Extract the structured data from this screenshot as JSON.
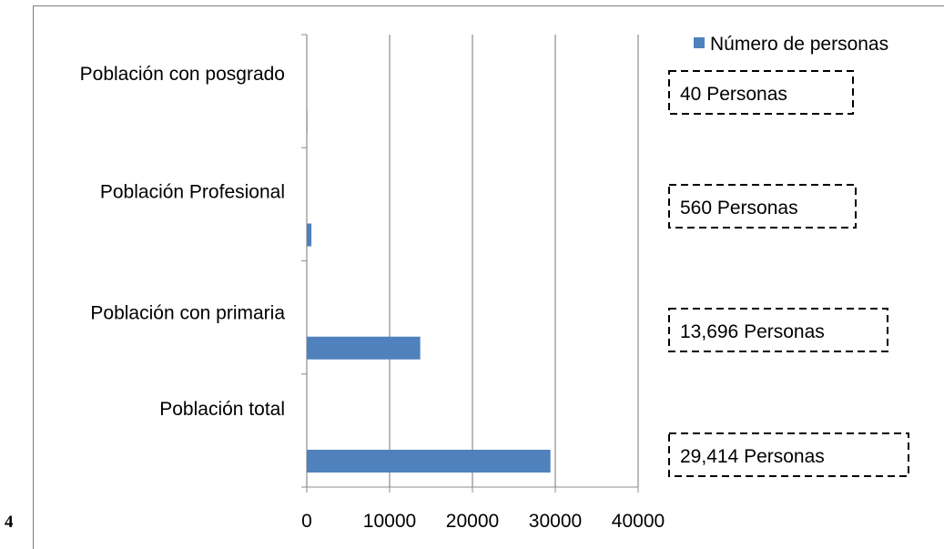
{
  "page": {
    "number": "4"
  },
  "chart_data": {
    "type": "bar",
    "orientation": "horizontal",
    "categories": [
      "Población total",
      "Población con primaria",
      "Población Profesional",
      "Población con posgrado"
    ],
    "series": [
      {
        "name": "Número de personas",
        "values": [
          29414,
          13696,
          560,
          40
        ],
        "color": "#4f81bd"
      }
    ],
    "xlim": [
      0,
      40000
    ],
    "xticks": [
      "0",
      "10000",
      "20000",
      "30000",
      "40000"
    ],
    "grid": "vertical",
    "legend": {
      "position": "top-right",
      "label": "Número de personas"
    },
    "annotations": [
      "29,414 Personas",
      "13,696 Personas",
      "560 Personas",
      "40 Personas"
    ]
  }
}
